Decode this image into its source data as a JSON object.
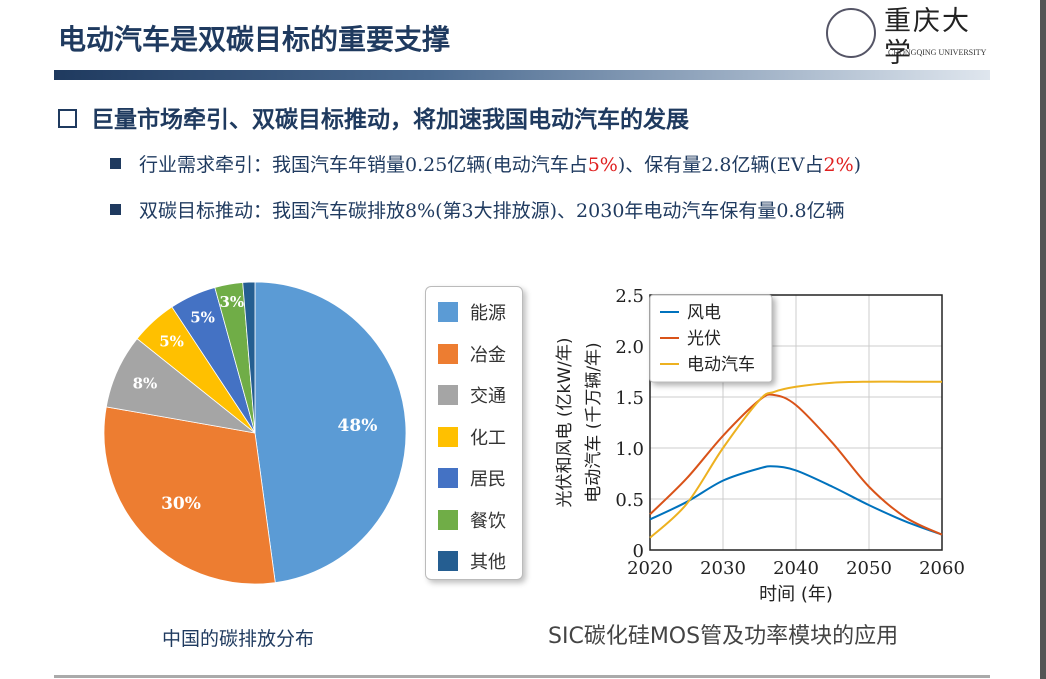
{
  "slide": {
    "title": "电动汽车是双碳目标的重要支撑",
    "logo_cn": "重庆大学",
    "logo_en": "CHONGQING UNIVERSITY"
  },
  "heading": "巨量市场牵引、双碳目标推动，将加速我国电动汽车的发展",
  "bullets": [
    {
      "a": "行业需求牵引：我国汽车年销量0.25亿辆(电动汽车占",
      "r1": "5%",
      "b": ")、保有量2.8亿辆(EV占",
      "r2": "2%",
      "c": ")"
    },
    {
      "a": "双碳目标推动：我国汽车碳排放8%(第3大排放源)、2030年电动汽车保有量0.8亿辆"
    }
  ],
  "watermark": "SIC碳化硅MOS管及功率模块的应用",
  "chart_data": [
    {
      "type": "pie",
      "title": "中国的碳排放分布",
      "start": "top",
      "direction": "clockwise",
      "legend_position": "right",
      "categories": [
        "能源",
        "冶金",
        "交通",
        "化工",
        "居民",
        "餐饮",
        "其他"
      ],
      "values": [
        48,
        30,
        8,
        5,
        5,
        3,
        1.3
      ],
      "labels": [
        "48%",
        "30%",
        "8%",
        "5%",
        "5%",
        "3%",
        ""
      ],
      "colors": [
        "#5b9bd5",
        "#ed7d31",
        "#a5a5a5",
        "#ffc000",
        "#4472c4",
        "#70ad47",
        "#255e91"
      ]
    },
    {
      "type": "line",
      "xlabel": "时间 (年)",
      "ylabel": [
        "光伏和风电 (亿kW/年)",
        "电动汽车 (千万辆/年)"
      ],
      "xlim": [
        2020,
        2060
      ],
      "ylim": [
        0,
        2.5
      ],
      "grid": true,
      "legend_position": "top-left",
      "xticks": [
        "2020",
        "2030",
        "2040",
        "2050",
        "2060"
      ],
      "yticks": [
        "0",
        "0.5",
        "1.0",
        "1.5",
        "2.0",
        "2.5"
      ],
      "x": [
        2020,
        2025,
        2030,
        2035,
        2037,
        2040,
        2045,
        2050,
        2055,
        2060
      ],
      "series": [
        {
          "name": "风电",
          "color": "#0072bd",
          "values": [
            0.3,
            0.47,
            0.68,
            0.8,
            0.82,
            0.78,
            0.62,
            0.44,
            0.28,
            0.15
          ]
        },
        {
          "name": "光伏",
          "color": "#d95319",
          "values": [
            0.35,
            0.7,
            1.12,
            1.47,
            1.52,
            1.42,
            1.05,
            0.62,
            0.32,
            0.15
          ]
        },
        {
          "name": "电动汽车",
          "color": "#edb120",
          "values": [
            0.12,
            0.45,
            1.0,
            1.47,
            1.55,
            1.6,
            1.64,
            1.65,
            1.65,
            1.65
          ]
        }
      ]
    }
  ]
}
